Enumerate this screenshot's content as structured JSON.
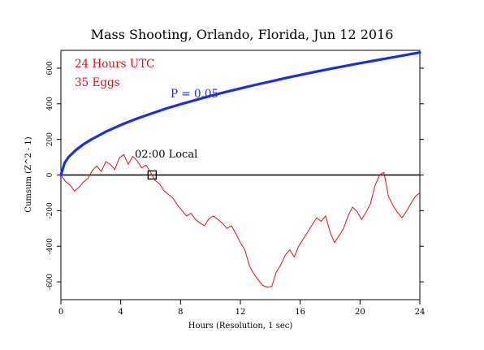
{
  "chart_data": {
    "type": "line",
    "title": "Mass Shooting, Orlando, Florida, Jun 12 2016",
    "xlabel": "Hours (Resolution, 1 sec)",
    "ylabel": "Cumsum (Z^2 - 1)",
    "xlim": [
      0,
      24
    ],
    "ylim": [
      -700,
      700
    ],
    "xticks": [
      0,
      4,
      8,
      12,
      16,
      20,
      24
    ],
    "yticks": [
      -600,
      -400,
      -200,
      0,
      200,
      400,
      600
    ],
    "grid": false,
    "annotations": {
      "hours_utc": "24 Hours UTC",
      "eggs": "35 Eggs",
      "p_label": "P = 0.05",
      "local_label": "02:00 Local",
      "local_marker_x": 6.1
    },
    "colors": {
      "cumsum": "#ee1111",
      "probability": "#1a2ee8",
      "zero_line": "#000000",
      "annotation_red": "#dd1111"
    },
    "series": [
      {
        "kind": "probability_envelope",
        "label": "P = 0.05",
        "x": [
          0,
          0.25,
          0.5,
          1,
          1.5,
          2,
          3,
          4,
          5,
          6,
          7,
          8,
          9,
          10,
          11,
          12,
          13,
          14,
          15,
          16,
          17,
          18,
          19,
          20,
          21,
          22,
          23,
          24
        ],
        "values": [
          0,
          68,
          100,
          140,
          172,
          198,
          243,
          281,
          314,
          344,
          372,
          397,
          421,
          444,
          466,
          486,
          506,
          525,
          544,
          562,
          579,
          596,
          612,
          628,
          643,
          658,
          673,
          688
        ]
      },
      {
        "kind": "cumulative_deviation",
        "x": [
          0,
          0.3,
          0.6,
          0.9,
          1.2,
          1.5,
          1.8,
          2.1,
          2.4,
          2.7,
          3.0,
          3.3,
          3.6,
          3.9,
          4.2,
          4.5,
          4.8,
          5.1,
          5.4,
          5.7,
          6.0,
          6.3,
          6.6,
          6.9,
          7.2,
          7.5,
          7.8,
          8.1,
          8.4,
          8.7,
          9.0,
          9.3,
          9.6,
          9.9,
          10.2,
          10.5,
          10.8,
          11.1,
          11.4,
          11.7,
          12.0,
          12.3,
          12.6,
          12.9,
          13.2,
          13.5,
          13.8,
          14.1,
          14.4,
          14.7,
          15.0,
          15.3,
          15.6,
          15.9,
          16.2,
          16.5,
          16.8,
          17.1,
          17.4,
          17.7,
          18.0,
          18.3,
          18.6,
          18.9,
          19.2,
          19.5,
          19.8,
          20.1,
          20.4,
          20.7,
          21.0,
          21.3,
          21.6,
          21.9,
          22.2,
          22.5,
          22.8,
          23.1,
          23.4,
          23.7,
          24.0
        ],
        "values": [
          0,
          -35,
          -55,
          -90,
          -70,
          -40,
          -20,
          25,
          50,
          20,
          75,
          60,
          30,
          95,
          115,
          60,
          105,
          80,
          40,
          55,
          15,
          -30,
          -50,
          -90,
          -110,
          -130,
          -170,
          -200,
          -230,
          -215,
          -250,
          -270,
          -285,
          -245,
          -230,
          -250,
          -270,
          -300,
          -285,
          -330,
          -380,
          -420,
          -510,
          -555,
          -590,
          -620,
          -630,
          -625,
          -545,
          -505,
          -450,
          -420,
          -460,
          -400,
          -360,
          -320,
          -280,
          -240,
          -260,
          -230,
          -320,
          -380,
          -340,
          -300,
          -230,
          -180,
          -205,
          -250,
          -210,
          -160,
          -60,
          0,
          15,
          -120,
          -170,
          -210,
          -240,
          -205,
          -160,
          -120,
          -100
        ]
      }
    ]
  }
}
